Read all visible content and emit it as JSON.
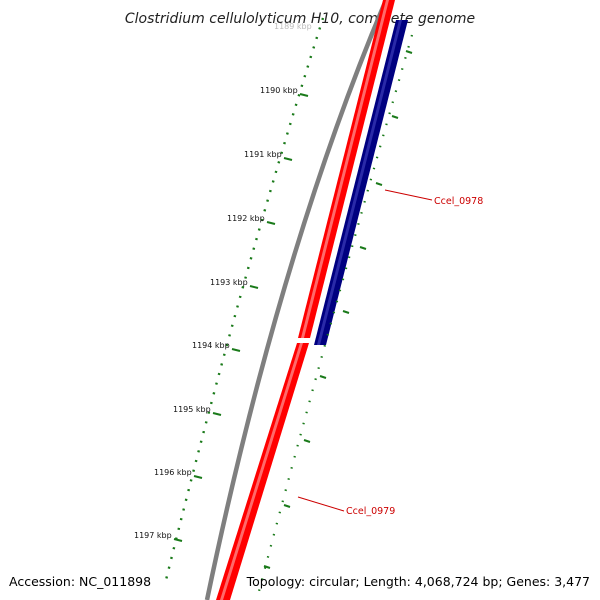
{
  "title": "Clostridium cellulolyticum H10, complete genome",
  "footer": {
    "accession": "Accession: NC_011898",
    "topology": "Topology: circular; Length: 4,068,724 bp; Genes: 3,477"
  },
  "ruler": {
    "unit": "kbp",
    "top_partial_label": "1189 kbp",
    "ticks": [
      {
        "label": "1190 kbp"
      },
      {
        "label": "1191 kbp"
      },
      {
        "label": "1192 kbp"
      },
      {
        "label": "1193 kbp"
      },
      {
        "label": "1194 kbp"
      },
      {
        "label": "1195 kbp"
      },
      {
        "label": "1196 kbp"
      },
      {
        "label": "1197 kbp"
      }
    ]
  },
  "genes": [
    {
      "name": "Ccel_0978",
      "strand": "reverse",
      "color": "#000080"
    },
    {
      "name": "Ccel_0979",
      "strand": "forward",
      "color": "#ff0000"
    }
  ],
  "colors": {
    "backbone": "#808080",
    "forward_genes": "#ff0000",
    "reverse_genes": "#000080",
    "ticks": "#1a7a1a",
    "gene_labels": "#cc0000"
  }
}
